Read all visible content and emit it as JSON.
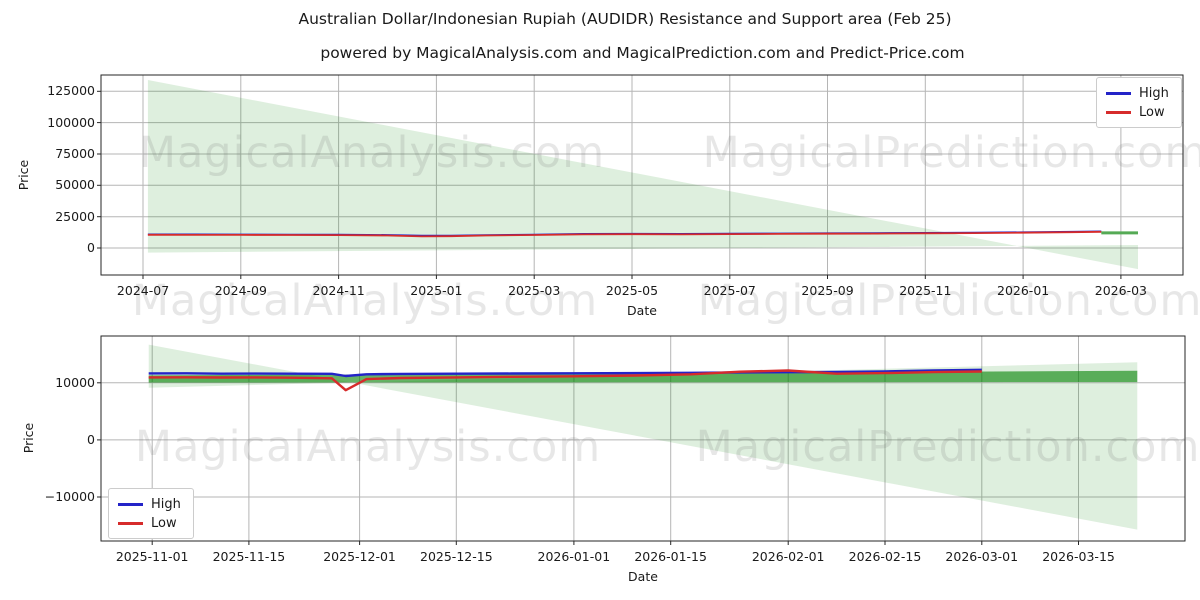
{
  "figure": {
    "title": "Australian Dollar/Indonesian Rupiah (AUDIDR) Resistance and Support area (Feb 25)",
    "subtitle": "powered by MagicalAnalysis.com and MagicalPrediction.com and Predict-Price.com",
    "background": "#ffffff"
  },
  "watermark": {
    "left_text": "MagicalAnalysis.com",
    "right_text": "MagicalPrediction.com"
  },
  "legend": {
    "high_label": "High",
    "low_label": "Low"
  },
  "colors": {
    "high_line": "#2323c8",
    "low_line": "#d62b2b",
    "forecast_green": "#55aa55",
    "fan_fill": "rgba(0,128,0,0.13)",
    "band_fill": "rgba(0,128,0,0.60)",
    "grid": "#b5b5b5",
    "axis": "#262626",
    "tick_text": "#1a1a1a"
  },
  "chart_data": [
    {
      "type": "line",
      "xlabel": "Date",
      "ylabel": "Price",
      "x_unit": "months since 2024-07-01",
      "grid": true,
      "legend_position": "upper right",
      "xlim": [
        -0.86,
        21.27
      ],
      "ylim": [
        -21500,
        138000
      ],
      "x_tick_pos": [
        0,
        2,
        4,
        6,
        8,
        10,
        12,
        14,
        16,
        18,
        20
      ],
      "x_tick_labels": [
        "2024-07",
        "2024-09",
        "2024-11",
        "2025-01",
        "2025-03",
        "2025-05",
        "2025-07",
        "2025-09",
        "2025-11",
        "2026-01",
        "2026-03"
      ],
      "y_tick_pos": [
        0,
        25000,
        50000,
        75000,
        100000,
        125000
      ],
      "y_tick_labels": [
        "0",
        "25000",
        "50000",
        "75000",
        "100000",
        "125000"
      ],
      "areas": [
        {
          "name": "resistance-support-fan",
          "fill_key": "fan_fill",
          "x": [
            0.1,
            20.35
          ],
          "upper": [
            134000,
            -16800
          ],
          "lower": [
            -3600,
            2400
          ]
        }
      ],
      "series": [
        {
          "name": "High",
          "color_key": "high_line",
          "width": 1.8,
          "x": [
            0.1,
            1,
            2,
            3,
            4,
            5,
            5.7,
            6.3,
            7,
            8,
            9,
            10,
            11,
            12,
            13,
            14,
            15,
            16,
            17,
            18,
            19,
            19.6
          ],
          "y": [
            10900,
            10850,
            10800,
            10750,
            10650,
            10400,
            9950,
            9950,
            10350,
            10750,
            11250,
            11350,
            11250,
            11450,
            11600,
            11750,
            11900,
            12100,
            12300,
            12550,
            12950,
            13300
          ]
        },
        {
          "name": "Low",
          "color_key": "low_line",
          "width": 1.8,
          "x": [
            0.1,
            1,
            2,
            3,
            4,
            5,
            5.7,
            6.3,
            7,
            8,
            9,
            10,
            11,
            12,
            13,
            14,
            15,
            16,
            17,
            18,
            19,
            19.6
          ],
          "y": [
            10550,
            10500,
            10450,
            10400,
            10300,
            10000,
            9300,
            9450,
            10000,
            10400,
            10900,
            11000,
            10900,
            11100,
            11250,
            11400,
            11550,
            11750,
            11950,
            12200,
            12600,
            12950
          ]
        },
        {
          "name": "Forecast",
          "color_key": "forecast_green",
          "width": 3,
          "x": [
            19.6,
            20.35
          ],
          "y": [
            12100,
            12100
          ]
        }
      ]
    },
    {
      "type": "line",
      "xlabel": "Date",
      "ylabel": "Price",
      "x_unit": "days since 2025-11-01",
      "grid": true,
      "legend_position": "lower left",
      "xlim": [
        -7.4,
        149.4
      ],
      "ylim": [
        -17700,
        18200
      ],
      "x_tick_pos": [
        0,
        14,
        30,
        44,
        61,
        75,
        92,
        106,
        120,
        134
      ],
      "x_tick_labels": [
        "2025-11-01",
        "2025-11-15",
        "2025-12-01",
        "2025-12-15",
        "2026-01-01",
        "2026-01-15",
        "2026-02-01",
        "2026-02-15",
        "2026-03-01",
        "2026-03-15"
      ],
      "y_tick_pos": [
        -10000,
        0,
        10000
      ],
      "y_tick_labels": [
        "−10000",
        "0",
        "10000"
      ],
      "areas": [
        {
          "name": "support-resistance-fan",
          "fill_key": "fan_fill",
          "x": [
            -0.5,
            142.5
          ],
          "upper": [
            16700,
            -15700
          ],
          "lower": [
            9150,
            13600
          ]
        },
        {
          "name": "forecast-band",
          "fill_key": "band_fill",
          "x": [
            -0.5,
            142.5
          ],
          "upper": [
            11300,
            12100
          ],
          "lower": [
            10050,
            10150
          ]
        }
      ],
      "series": [
        {
          "name": "High",
          "color_key": "high_line",
          "width": 2.4,
          "x": [
            -0.5,
            5,
            10,
            15,
            20,
            26,
            28,
            31,
            36,
            44,
            52,
            61,
            70,
            78,
            85,
            92,
            99,
            106,
            113,
            120
          ],
          "y": [
            11650,
            11660,
            11600,
            11620,
            11600,
            11580,
            11200,
            11500,
            11560,
            11600,
            11630,
            11660,
            11700,
            11760,
            11820,
            11860,
            11900,
            12000,
            12150,
            12280
          ]
        },
        {
          "name": "Low",
          "color_key": "low_line",
          "width": 2.4,
          "x": [
            -0.5,
            5,
            10,
            15,
            20,
            26,
            28,
            31,
            36,
            44,
            52,
            61,
            70,
            78,
            85,
            92,
            99,
            106,
            113,
            120
          ],
          "y": [
            10950,
            10960,
            10940,
            10950,
            10900,
            10800,
            8700,
            10650,
            10850,
            10950,
            11050,
            11150,
            11280,
            11500,
            11950,
            12150,
            11600,
            11700,
            11870,
            11980
          ]
        }
      ]
    }
  ]
}
